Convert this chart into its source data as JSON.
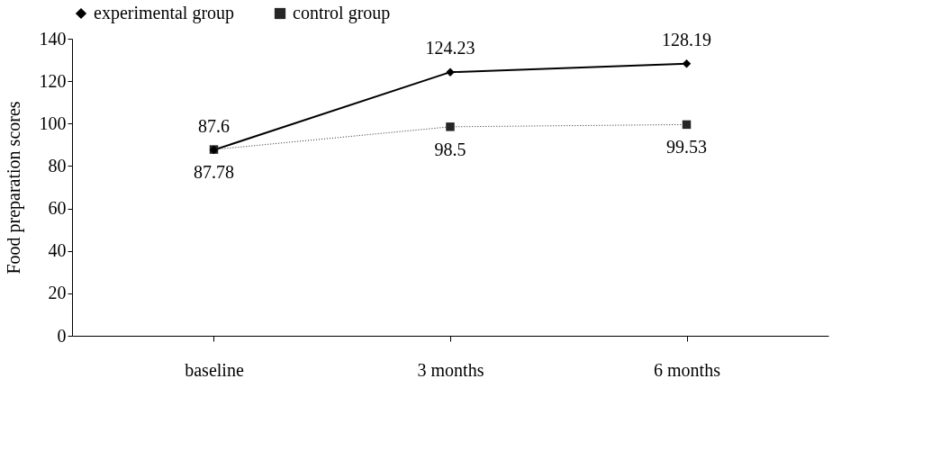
{
  "chart_data": {
    "type": "line",
    "ylabel": "Food preparation scores",
    "categories": [
      "baseline",
      "3 months",
      "6 months"
    ],
    "series": [
      {
        "name": "experimental group",
        "color": "#000000",
        "values": [
          87.6,
          124.23,
          128.19
        ],
        "marker": "diamond",
        "line_style": "solid"
      },
      {
        "name": "control group",
        "color": "#262626",
        "values": [
          87.78,
          98.5,
          99.53
        ],
        "marker": "square",
        "line_style": "dotted"
      }
    ],
    "ylim": [
      0,
      140
    ],
    "yticks": [
      0,
      20,
      40,
      60,
      80,
      100,
      120,
      140
    ],
    "grid": false,
    "legend": "top",
    "data_labels": true
  }
}
